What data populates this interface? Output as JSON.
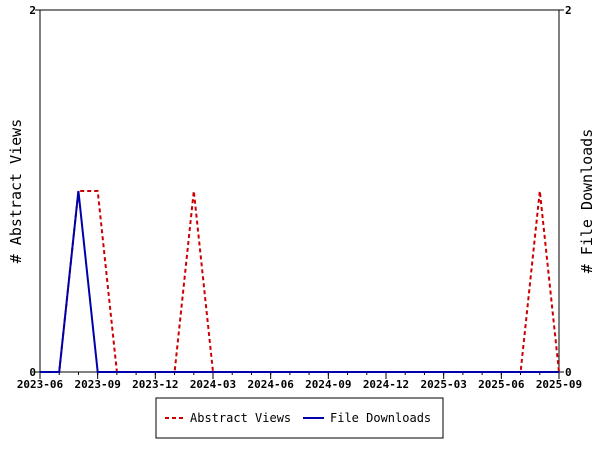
{
  "chart_data": {
    "type": "line",
    "title": "",
    "xlabel": "",
    "ylabel_left": "# Abstract Views",
    "ylabel_right": "# File Downloads",
    "x_ticks": [
      "2023-06",
      "2023-09",
      "2023-12",
      "2024-03",
      "2024-06",
      "2024-09",
      "2024-12",
      "2025-03",
      "2025-06",
      "2025-09"
    ],
    "x_range": [
      "2023-06",
      "2025-09"
    ],
    "y_left_range": [
      0,
      2
    ],
    "y_right_range": [
      0,
      2
    ],
    "y_left_ticks": [
      "0",
      "2"
    ],
    "y_right_ticks": [
      "0",
      "2"
    ],
    "x": [
      "2023-06",
      "2023-07",
      "2023-08",
      "2023-09",
      "2023-10",
      "2023-11",
      "2023-12",
      "2024-01",
      "2024-02",
      "2024-03",
      "2024-04",
      "2024-05",
      "2024-06",
      "2024-07",
      "2024-08",
      "2024-09",
      "2024-10",
      "2024-11",
      "2024-12",
      "2025-01",
      "2025-02",
      "2025-03",
      "2025-04",
      "2025-05",
      "2025-06",
      "2025-07",
      "2025-08",
      "2025-09"
    ],
    "series": [
      {
        "name": "Abstract Views",
        "color": "#cc0000",
        "style": "dashed",
        "axis": "left",
        "values": [
          0,
          0,
          1,
          1,
          0,
          0,
          0,
          0,
          1,
          0,
          0,
          0,
          0,
          0,
          0,
          0,
          0,
          0,
          0,
          0,
          0,
          0,
          0,
          0,
          0,
          0,
          1,
          0
        ]
      },
      {
        "name": "File Downloads",
        "color": "#0000aa",
        "style": "solid",
        "axis": "right",
        "values": [
          0,
          0,
          1,
          0,
          0,
          0,
          0,
          0,
          0,
          0,
          0,
          0,
          0,
          0,
          0,
          0,
          0,
          0,
          0,
          0,
          0,
          0,
          0,
          0,
          0,
          0,
          0,
          0
        ]
      }
    ],
    "legend_position": "bottom",
    "grid": false
  }
}
